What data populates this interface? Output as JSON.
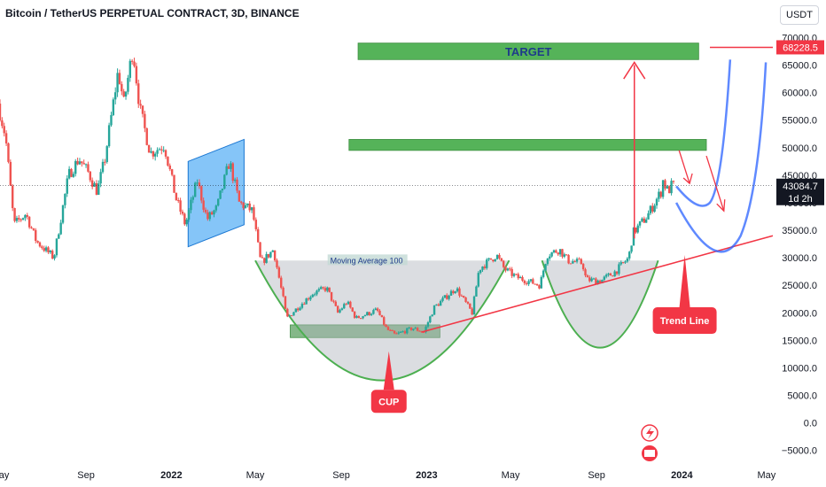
{
  "header": {
    "title": "Bitcoin / TetherUS PERPETUAL CONTRACT, 3D, BINANCE",
    "currency": "USDT"
  },
  "colors": {
    "up": "#26a69a",
    "down": "#ef5350",
    "green_zone": "#4caf50",
    "cup": "#4caf50",
    "projection": "#2962ff",
    "trend": "#f23645",
    "channel": "#2196f3",
    "arrow": "#f23645"
  },
  "chart_data": {
    "type": "candlestick",
    "symbol": "Bitcoin / TetherUS PERPETUAL CONTRACT",
    "timeframe": "3D",
    "exchange": "BINANCE",
    "y_axis": {
      "ticks": [
        -5000,
        0,
        5000,
        10000,
        15000,
        20000,
        25000,
        30000,
        35000,
        40000,
        45000,
        50000,
        55000,
        60000,
        65000,
        70000
      ],
      "tick_labels": [
        "−5000.0",
        "0.0",
        "5000.0",
        "10000.0",
        "15000.0",
        "20000.0",
        "25000.0",
        "30000.0",
        "35000.0",
        "40000.0",
        "45000.0",
        "50000.0",
        "55000.0",
        "60000.0",
        "65000.0",
        "70000.0"
      ],
      "range": [
        -6500,
        72000
      ]
    },
    "x_axis": {
      "range": [
        "2021-05-01",
        "2024-05-10"
      ],
      "ticks": [
        {
          "date": "2021-05-01",
          "label": "May",
          "bold": false
        },
        {
          "date": "2021-09-01",
          "label": "Sep",
          "bold": false
        },
        {
          "date": "2022-01-01",
          "label": "2022",
          "bold": true
        },
        {
          "date": "2022-05-01",
          "label": "May",
          "bold": false
        },
        {
          "date": "2022-09-01",
          "label": "Sep",
          "bold": false
        },
        {
          "date": "2023-01-01",
          "label": "2023",
          "bold": true
        },
        {
          "date": "2023-05-01",
          "label": "May",
          "bold": false
        },
        {
          "date": "2023-09-01",
          "label": "Sep",
          "bold": false
        },
        {
          "date": "2024-01-01",
          "label": "2024",
          "bold": true
        },
        {
          "date": "2024-05-01",
          "label": "May",
          "bold": false
        }
      ]
    },
    "price_anchors": [
      [
        "2021-05-01",
        58000
      ],
      [
        "2021-05-12",
        52000
      ],
      [
        "2021-05-24",
        36000
      ],
      [
        "2021-06-10",
        38000
      ],
      [
        "2021-06-25",
        33000
      ],
      [
        "2021-07-20",
        30000
      ],
      [
        "2021-08-10",
        45000
      ],
      [
        "2021-08-25",
        48000
      ],
      [
        "2021-09-07",
        45500
      ],
      [
        "2021-09-20",
        42000
      ],
      [
        "2021-10-01",
        48000
      ],
      [
        "2021-10-20",
        64000
      ],
      [
        "2021-10-28",
        58000
      ],
      [
        "2021-11-10",
        68000
      ],
      [
        "2021-11-20",
        57000
      ],
      [
        "2021-12-05",
        49000
      ],
      [
        "2021-12-25",
        50500
      ],
      [
        "2022-01-10",
        41000
      ],
      [
        "2022-01-24",
        36000
      ],
      [
        "2022-02-10",
        44000
      ],
      [
        "2022-02-24",
        37000
      ],
      [
        "2022-03-10",
        39000
      ],
      [
        "2022-03-28",
        47500
      ],
      [
        "2022-04-11",
        40000
      ],
      [
        "2022-04-30",
        38500
      ],
      [
        "2022-05-12",
        29000
      ],
      [
        "2022-05-30",
        31500
      ],
      [
        "2022-06-13",
        22500
      ],
      [
        "2022-06-18",
        19000
      ],
      [
        "2022-07-08",
        21500
      ],
      [
        "2022-07-25",
        23500
      ],
      [
        "2022-08-14",
        24500
      ],
      [
        "2022-08-30",
        20000
      ],
      [
        "2022-09-12",
        22000
      ],
      [
        "2022-09-25",
        19000
      ],
      [
        "2022-10-25",
        20500
      ],
      [
        "2022-11-08",
        17000
      ],
      [
        "2022-11-20",
        16000
      ],
      [
        "2022-12-15",
        17200
      ],
      [
        "2022-12-31",
        16500
      ],
      [
        "2023-01-15",
        21000
      ],
      [
        "2023-02-15",
        24500
      ],
      [
        "2023-03-10",
        20000
      ],
      [
        "2023-03-20",
        28000
      ],
      [
        "2023-04-14",
        30500
      ],
      [
        "2023-04-25",
        28000
      ],
      [
        "2023-05-12",
        26500
      ],
      [
        "2023-06-15",
        25000
      ],
      [
        "2023-06-25",
        30500
      ],
      [
        "2023-07-13",
        31500
      ],
      [
        "2023-07-25",
        29500
      ],
      [
        "2023-08-15",
        29000
      ],
      [
        "2023-08-20",
        26000
      ],
      [
        "2023-09-10",
        25800
      ],
      [
        "2023-10-01",
        27500
      ],
      [
        "2023-10-20",
        30000
      ],
      [
        "2023-10-26",
        34500
      ],
      [
        "2023-11-15",
        37500
      ],
      [
        "2023-12-05",
        42000
      ],
      [
        "2023-12-08",
        44000
      ],
      [
        "2023-12-15",
        42000
      ],
      [
        "2023-12-20",
        43084
      ]
    ],
    "last_price": 43084.7,
    "last_price_label": "43084.7",
    "countdown_label": "1d 2h",
    "target_price_label": "68228.5",
    "zones": [
      {
        "name": "target-zone",
        "label": "TARGET",
        "from": "2022-09-25",
        "to": "2024-01-25",
        "low": 66000,
        "high": 69000
      },
      {
        "name": "resistance-zone",
        "label": "",
        "from": "2022-09-12",
        "to": "2024-02-05",
        "low": 49500,
        "high": 51500
      },
      {
        "name": "base-zone",
        "label": "",
        "from": "2022-06-20",
        "to": "2023-01-20",
        "low": 15500,
        "high": 17800
      }
    ],
    "annotations": {
      "moving_average_label": "Moving Average 100",
      "cup_label": "CUP",
      "trend_line_label": "Trend Line"
    }
  }
}
